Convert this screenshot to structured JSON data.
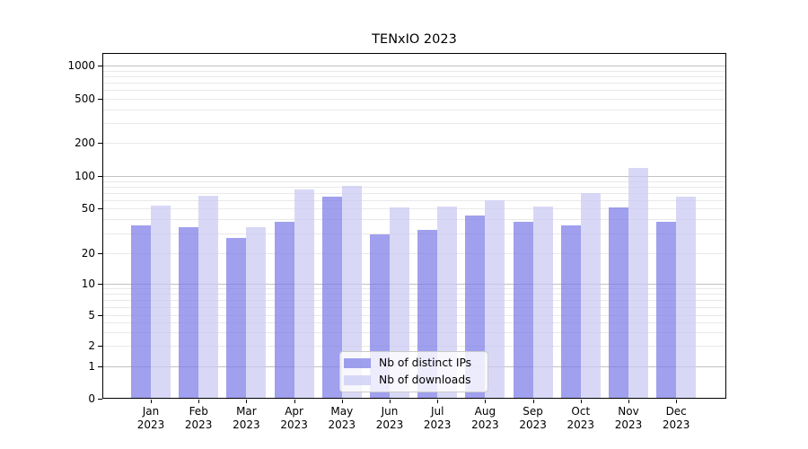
{
  "chart_data": {
    "type": "bar",
    "title": "TENxIO 2023",
    "year": "2023",
    "categories": [
      "Jan",
      "Feb",
      "Mar",
      "Apr",
      "May",
      "Jun",
      "Jul",
      "Aug",
      "Sep",
      "Oct",
      "Nov",
      "Dec"
    ],
    "series": [
      {
        "name": "Nb of distinct IPs",
        "color": "#7c7ce8",
        "values": [
          35,
          34,
          27,
          38,
          65,
          29,
          32,
          43,
          38,
          35,
          51,
          38
        ]
      },
      {
        "name": "Nb of downloads",
        "color": "#c9c9f3",
        "values": [
          53,
          66,
          34,
          75,
          82,
          51,
          52,
          60,
          52,
          70,
          120,
          65
        ]
      }
    ],
    "bar_opacity": 0.72,
    "yscale": "symlog",
    "yticks": [
      0,
      1,
      2,
      5,
      10,
      20,
      50,
      100,
      200,
      500,
      1000
    ],
    "ylim": [
      0,
      1300
    ],
    "grid": {
      "major_color": "#c2c2c2",
      "minor_color": "#e9e9e9",
      "minor_values": [
        2,
        3,
        4,
        5,
        6,
        7,
        8,
        9,
        20,
        30,
        40,
        50,
        60,
        70,
        80,
        90,
        200,
        300,
        400,
        500,
        600,
        700,
        800,
        900
      ],
      "major_values": [
        1,
        10,
        100,
        1000
      ]
    },
    "legend": {
      "position": "lower center"
    }
  }
}
